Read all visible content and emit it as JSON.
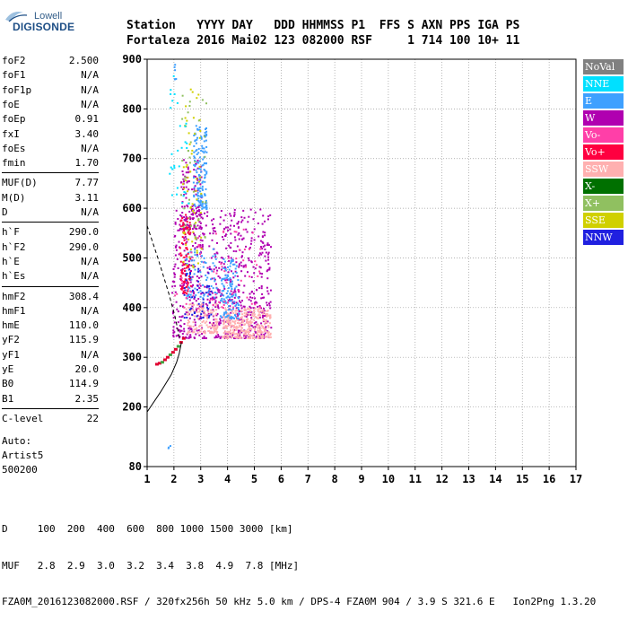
{
  "logo": {
    "line1": "Lowell",
    "line2": "DIGISONDE"
  },
  "header": {
    "labels_line": "Station   YYYY DAY   DDD HHMMSS P1  FFS S AXN PPS IGA PS",
    "values_line": "Fortaleza 2016 Mai02 123 082000 RSF     1 714 100 10+ 11"
  },
  "parameters": [
    {
      "name": "foF2",
      "value": "2.500"
    },
    {
      "name": "foF1",
      "value": "N/A"
    },
    {
      "name": "foF1p",
      "value": "N/A"
    },
    {
      "name": "foE",
      "value": "N/A"
    },
    {
      "name": "foEp",
      "value": "0.91"
    },
    {
      "name": "fxI",
      "value": "3.40"
    },
    {
      "name": "foEs",
      "value": "N/A"
    },
    {
      "name": "fmin",
      "value": "1.70"
    },
    {
      "name": "MUF(D)",
      "value": "7.77"
    },
    {
      "name": "M(D)",
      "value": "3.11"
    },
    {
      "name": "D",
      "value": "N/A"
    },
    {
      "name": "h`F",
      "value": "290.0"
    },
    {
      "name": "h`F2",
      "value": "290.0"
    },
    {
      "name": "h`E",
      "value": "N/A"
    },
    {
      "name": "h`Es",
      "value": "N/A"
    },
    {
      "name": "hmF2",
      "value": "308.4"
    },
    {
      "name": "hmF1",
      "value": "N/A"
    },
    {
      "name": "hmE",
      "value": "110.0"
    },
    {
      "name": "yF2",
      "value": "115.9"
    },
    {
      "name": "yF1",
      "value": "N/A"
    },
    {
      "name": "yE",
      "value": "20.0"
    },
    {
      "name": "B0",
      "value": "114.9"
    },
    {
      "name": "B1",
      "value": "2.35"
    },
    {
      "name": "C-level",
      "value": "22"
    }
  ],
  "auto_block": {
    "line1": "Auto:",
    "line2": "Artist5",
    "line3": "500200"
  },
  "legend": [
    {
      "label": "NoVal",
      "color": "#808080"
    },
    {
      "label": "NNE",
      "color": "#00e0ff"
    },
    {
      "label": "E",
      "color": "#3ea0ff"
    },
    {
      "label": "W",
      "color": "#b000b0"
    },
    {
      "label": "Vo-",
      "color": "#ff3fa8"
    },
    {
      "label": "Vo+",
      "color": "#ff0040"
    },
    {
      "label": "SSW",
      "color": "#ffb0b0"
    },
    {
      "label": "X-",
      "color": "#007000"
    },
    {
      "label": "X+",
      "color": "#90c060"
    },
    {
      "label": "SSE",
      "color": "#d0d000"
    },
    {
      "label": "NNW",
      "color": "#2020e0"
    }
  ],
  "footer": {
    "d_row": "D     100  200  400  600  800 1000 1500 3000 [km]",
    "muf_row": "MUF   2.8  2.9  3.0  3.2  3.4  3.8  4.9  7.8 [MHz]",
    "info_row": "FZA0M_2016123082000.RSF / 320fx256h 50 kHz 5.0 km / DPS-4 FZA0M 904 / 3.9 S 321.6 E   Ion2Png 1.3.20"
  },
  "chart_data": {
    "type": "scatter",
    "title": "",
    "xlabel": "",
    "ylabel": "",
    "xlim": [
      1,
      17
    ],
    "ylim": [
      80,
      900
    ],
    "x_ticks": [
      1,
      2,
      3,
      4,
      5,
      6,
      7,
      8,
      9,
      10,
      11,
      12,
      13,
      14,
      15,
      16,
      17
    ],
    "y_ticks": [
      80,
      200,
      300,
      400,
      500,
      600,
      700,
      800,
      900
    ],
    "grid": "dotted",
    "legend_placement": "right",
    "clusters": [
      {
        "series": "W",
        "x": [
          1.9,
          5.6
        ],
        "y": [
          340,
          600
        ],
        "n": 700
      },
      {
        "series": "W",
        "x": [
          2.2,
          3.0
        ],
        "y": [
          560,
          700
        ],
        "n": 120
      },
      {
        "series": "SSW",
        "x": [
          3.8,
          5.6
        ],
        "y": [
          340,
          400
        ],
        "n": 300
      },
      {
        "series": "SSW",
        "x": [
          2.4,
          3.6
        ],
        "y": [
          350,
          410
        ],
        "n": 120
      },
      {
        "series": "E",
        "x": [
          2.7,
          3.2
        ],
        "y": [
          600,
          770
        ],
        "n": 140
      },
      {
        "series": "E",
        "x": [
          3.7,
          4.4
        ],
        "y": [
          380,
          500
        ],
        "n": 120
      },
      {
        "series": "E",
        "x": [
          2.4,
          3.6
        ],
        "y": [
          420,
          520
        ],
        "n": 80
      },
      {
        "series": "Vo+",
        "x": [
          2.2,
          2.6
        ],
        "y": [
          430,
          590
        ],
        "n": 90
      },
      {
        "series": "Vo-",
        "x": [
          2.0,
          5.2
        ],
        "y": [
          400,
          560
        ],
        "n": 70
      },
      {
        "series": "NNW",
        "x": [
          2.3,
          3.4
        ],
        "y": [
          380,
          480
        ],
        "n": 50
      },
      {
        "series": "SSE",
        "x": [
          2.3,
          3.0
        ],
        "y": [
          480,
          850
        ],
        "n": 60
      },
      {
        "series": "X+",
        "x": [
          2.2,
          3.2
        ],
        "y": [
          540,
          840
        ],
        "n": 40
      },
      {
        "series": "NNE",
        "x": [
          1.8,
          2.6
        ],
        "y": [
          600,
          890
        ],
        "n": 30
      },
      {
        "series": "E",
        "x": [
          1.95,
          2.05
        ],
        "y": [
          860,
          895
        ],
        "n": 6
      },
      {
        "series": "E",
        "x": [
          1.75,
          1.85
        ],
        "y": [
          118,
          124
        ],
        "n": 3
      }
    ],
    "trace_points": [
      [
        1.35,
        286
      ],
      [
        1.45,
        288
      ],
      [
        1.55,
        290
      ],
      [
        1.65,
        295
      ],
      [
        1.75,
        300
      ],
      [
        1.85,
        305
      ],
      [
        1.95,
        310
      ],
      [
        2.05,
        316
      ],
      [
        2.15,
        322
      ],
      [
        2.25,
        330
      ],
      [
        2.35,
        338
      ]
    ],
    "profile_curve": [
      [
        1.0,
        190
      ],
      [
        1.5,
        230
      ],
      [
        1.9,
        265
      ],
      [
        2.1,
        290
      ],
      [
        2.2,
        308
      ],
      [
        2.28,
        330
      ]
    ],
    "dashed_curve": [
      [
        1.0,
        565
      ],
      [
        1.4,
        500
      ],
      [
        1.8,
        430
      ],
      [
        2.05,
        380
      ],
      [
        2.2,
        340
      ]
    ]
  }
}
